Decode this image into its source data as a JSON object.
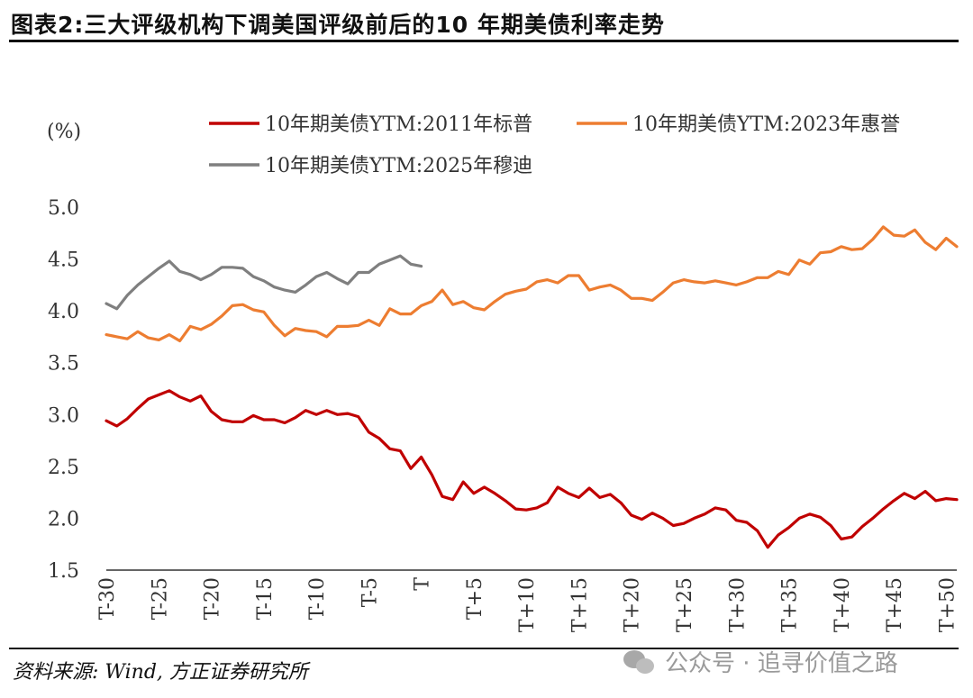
{
  "header": {
    "title": "图表2:三大评级机构下调美国评级前后的10 年期美债利率走势"
  },
  "footer": {
    "source": "资料来源: Wind, 方正证券研究所",
    "watermark": "公众号 · 追寻价值之路"
  },
  "chart_data": {
    "type": "line",
    "ylabel": "(%)",
    "ylim": [
      1.5,
      5.0
    ],
    "yticks": [
      "1.5",
      "2.0",
      "2.5",
      "3.0",
      "3.5",
      "4.0",
      "4.5",
      "5.0"
    ],
    "xlim": [
      -30,
      51
    ],
    "xticks": [
      {
        "label": "T-30",
        "x": -30
      },
      {
        "label": "T-25",
        "x": -25
      },
      {
        "label": "T-20",
        "x": -20
      },
      {
        "label": "T-15",
        "x": -15
      },
      {
        "label": "T-10",
        "x": -10
      },
      {
        "label": "T-5",
        "x": -5
      },
      {
        "label": "T",
        "x": 0
      },
      {
        "label": "T+5",
        "x": 5
      },
      {
        "label": "T+10",
        "x": 10
      },
      {
        "label": "T+15",
        "x": 15
      },
      {
        "label": "T+20",
        "x": 20
      },
      {
        "label": "T+25",
        "x": 25
      },
      {
        "label": "T+30",
        "x": 30
      },
      {
        "label": "T+35",
        "x": 35
      },
      {
        "label": "T+40",
        "x": 40
      },
      {
        "label": "T+45",
        "x": 45
      },
      {
        "label": "T+50",
        "x": 50
      }
    ],
    "grid": false,
    "legend_position": "top",
    "series": [
      {
        "name": "10年期美债YTM:2011年标普",
        "color": "#C00000",
        "x_start": -30,
        "values": [
          2.94,
          2.89,
          2.96,
          3.06,
          3.15,
          3.19,
          3.23,
          3.17,
          3.13,
          3.18,
          3.03,
          2.95,
          2.93,
          2.93,
          2.99,
          2.95,
          2.95,
          2.92,
          2.97,
          3.04,
          3.0,
          3.04,
          3.0,
          3.01,
          2.98,
          2.83,
          2.77,
          2.67,
          2.65,
          2.48,
          2.59,
          2.42,
          2.21,
          2.18,
          2.35,
          2.24,
          2.3,
          2.24,
          2.17,
          2.09,
          2.08,
          2.1,
          2.15,
          2.3,
          2.24,
          2.2,
          2.29,
          2.2,
          2.23,
          2.15,
          2.03,
          1.99,
          2.05,
          2.0,
          1.93,
          1.95,
          2.0,
          2.04,
          2.1,
          2.08,
          1.98,
          1.96,
          1.88,
          1.72,
          1.84,
          1.91,
          2.0,
          2.04,
          2.01,
          1.93,
          1.8,
          1.82,
          1.92,
          2.0,
          2.09,
          2.17,
          2.24,
          2.19,
          2.26,
          2.17,
          2.19,
          2.18
        ]
      },
      {
        "name": "10年期美债YTM:2023年惠誉",
        "color": "#ED7D31",
        "x_start": -30,
        "values": [
          3.77,
          3.75,
          3.73,
          3.8,
          3.74,
          3.72,
          3.77,
          3.71,
          3.85,
          3.82,
          3.87,
          3.95,
          4.05,
          4.06,
          4.01,
          3.99,
          3.86,
          3.76,
          3.83,
          3.81,
          3.8,
          3.75,
          3.85,
          3.85,
          3.86,
          3.91,
          3.86,
          4.02,
          3.97,
          3.97,
          4.05,
          4.09,
          4.2,
          4.06,
          4.09,
          4.03,
          4.01,
          4.09,
          4.16,
          4.19,
          4.21,
          4.28,
          4.3,
          4.27,
          4.34,
          4.34,
          4.2,
          4.23,
          4.25,
          4.2,
          4.12,
          4.12,
          4.1,
          4.18,
          4.27,
          4.3,
          4.28,
          4.27,
          4.29,
          4.27,
          4.25,
          4.28,
          4.32,
          4.32,
          4.38,
          4.35,
          4.49,
          4.45,
          4.56,
          4.57,
          4.62,
          4.59,
          4.6,
          4.69,
          4.81,
          4.73,
          4.72,
          4.78,
          4.66,
          4.59,
          4.7,
          4.62
        ]
      },
      {
        "name": "10年期美债YTM:2025年穆迪",
        "color": "#7F7F7F",
        "x_start": -30,
        "values": [
          4.07,
          4.02,
          4.15,
          4.25,
          4.33,
          4.41,
          4.48,
          4.38,
          4.35,
          4.3,
          4.35,
          4.42,
          4.42,
          4.41,
          4.33,
          4.29,
          4.23,
          4.2,
          4.18,
          4.25,
          4.33,
          4.37,
          4.31,
          4.26,
          4.37,
          4.37,
          4.45,
          4.49,
          4.53,
          4.45,
          4.43
        ]
      }
    ]
  }
}
